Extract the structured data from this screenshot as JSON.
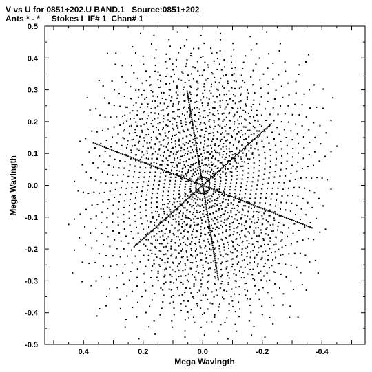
{
  "header": {
    "line1": "V vs U for 0851+202.U BAND.1   Source:0851+202",
    "line2": "Ants * - *     Stokes I  IF# 1  Chan# 1"
  },
  "colors": {
    "points": "#000000",
    "frame": "#000000",
    "background": "#ffffff"
  },
  "chart_data": {
    "type": "scatter",
    "title": "V vs U for 0851+202.U BAND.1   Source:0851+202",
    "subtitle": "Ants * - *     Stokes I  IF# 1  Chan# 1",
    "xlabel": "Mega Wavlngth",
    "ylabel": "Mega Wavlngth",
    "xlim": [
      0.53,
      -0.545
    ],
    "ylim": [
      -0.5,
      0.5
    ],
    "x_reversed": true,
    "x_ticks": [
      0.4,
      0.2,
      0.0,
      -0.2,
      -0.4
    ],
    "x_tick_labels": [
      "0.4",
      "0.2",
      "0.0",
      "-0.2",
      "-0.4"
    ],
    "y_ticks": [
      0.5,
      0.4,
      0.3,
      0.2,
      0.1,
      0.0,
      -0.1,
      -0.2,
      -0.3,
      -0.4,
      -0.5
    ],
    "y_tick_labels": [
      "0.5",
      "0.4",
      "0.3",
      "0.2",
      "0.1",
      "0.0",
      "-0.1",
      "-0.2",
      "-0.3",
      "-0.4",
      "-0.5"
    ],
    "grid": false,
    "marker": "dot",
    "pattern": "uv coverage, point symmetric about origin; each entry is a track sampled from t0 to t1 in equal steps (points plotted at (u,v) and (-u,-v))",
    "tracks": [
      {
        "a": 0.025,
        "t0": 0.12,
        "t1": 5.7,
        "n": 22
      },
      {
        "a": 0.045,
        "t0": 0.12,
        "t1": 5.7,
        "n": 30
      },
      {
        "a": 0.065,
        "t0": 0.12,
        "t1": 5.7,
        "n": 38
      },
      {
        "a": 0.085,
        "t0": 0.12,
        "t1": 5.7,
        "n": 44
      },
      {
        "a": 0.105,
        "t0": 0.15,
        "t1": 5.7,
        "n": 50
      },
      {
        "a": 0.125,
        "t0": 0.15,
        "t1": 5.7,
        "n": 56
      },
      {
        "a": 0.145,
        "t0": 0.18,
        "t1": 5.7,
        "n": 60
      },
      {
        "a": 0.165,
        "t0": 0.18,
        "t1": 5.65,
        "n": 64
      },
      {
        "a": 0.185,
        "t0": 0.2,
        "t1": 5.65,
        "n": 68
      },
      {
        "a": 0.205,
        "t0": 0.22,
        "t1": 5.6,
        "n": 70
      },
      {
        "a": 0.225,
        "t0": 0.25,
        "t1": 5.55,
        "n": 72
      },
      {
        "a": 0.245,
        "t0": 0.28,
        "t1": 5.5,
        "n": 72
      },
      {
        "a": 0.265,
        "t0": 0.32,
        "t1": 5.45,
        "n": 70
      },
      {
        "a": 0.285,
        "t0": 0.36,
        "t1": 5.4,
        "n": 68
      },
      {
        "a": 0.305,
        "t0": 0.42,
        "t1": 5.35,
        "n": 64
      },
      {
        "a": 0.325,
        "t0": 0.48,
        "t1": 5.25,
        "n": 60
      },
      {
        "a": 0.345,
        "t0": 0.55,
        "t1": 5.15,
        "n": 56
      },
      {
        "a": 0.365,
        "t0": 0.62,
        "t1": 5.05,
        "n": 50
      },
      {
        "a": 0.385,
        "t0": 0.7,
        "t1": 4.95,
        "n": 44
      },
      {
        "a": 0.405,
        "t0": 0.8,
        "t1": 4.85,
        "n": 38
      },
      {
        "a": 0.425,
        "t0": 0.9,
        "t1": 4.7,
        "n": 30
      },
      {
        "a": 0.445,
        "t0": 1.0,
        "t1": 4.55,
        "n": 22
      },
      {
        "a": 0.465,
        "t0": 1.15,
        "t1": 4.35,
        "n": 16
      },
      {
        "a": 0.485,
        "t0": 1.25,
        "t1": 4.2,
        "n": 10
      }
    ],
    "rays": [
      {
        "angle_deg": 20,
        "r0": 0.0,
        "r1": 0.39,
        "n": 60
      },
      {
        "angle_deg": 80,
        "r0": 0.0,
        "r1": 0.3,
        "n": 50
      },
      {
        "angle_deg": 140,
        "r0": 0.0,
        "r1": 0.3,
        "n": 50
      }
    ]
  }
}
